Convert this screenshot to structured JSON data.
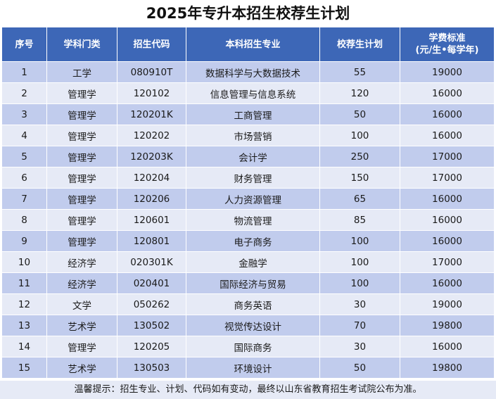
{
  "title": "2025年专升本招生校荐生计划",
  "table": {
    "headers": {
      "seq": "序号",
      "category": "学科门类",
      "code": "招生代码",
      "major": "本科招生专业",
      "plan": "校荐生计划",
      "fee_line1": "学费标准",
      "fee_line2": "(元/生•每学年)"
    },
    "rows": [
      {
        "seq": "1",
        "category": "工学",
        "code": "080910T",
        "major": "数据科学与大数据技术",
        "plan": "55",
        "fee": "19000"
      },
      {
        "seq": "2",
        "category": "管理学",
        "code": "120102",
        "major": "信息管理与信息系统",
        "plan": "120",
        "fee": "16000"
      },
      {
        "seq": "3",
        "category": "管理学",
        "code": "120201K",
        "major": "工商管理",
        "plan": "50",
        "fee": "16000"
      },
      {
        "seq": "4",
        "category": "管理学",
        "code": "120202",
        "major": "市场营销",
        "plan": "100",
        "fee": "16000"
      },
      {
        "seq": "5",
        "category": "管理学",
        "code": "120203K",
        "major": "会计学",
        "plan": "250",
        "fee": "17000"
      },
      {
        "seq": "6",
        "category": "管理学",
        "code": "120204",
        "major": "财务管理",
        "plan": "150",
        "fee": "17000"
      },
      {
        "seq": "7",
        "category": "管理学",
        "code": "120206",
        "major": "人力资源管理",
        "plan": "65",
        "fee": "16000"
      },
      {
        "seq": "8",
        "category": "管理学",
        "code": "120601",
        "major": "物流管理",
        "plan": "85",
        "fee": "16000"
      },
      {
        "seq": "9",
        "category": "管理学",
        "code": "120801",
        "major": "电子商务",
        "plan": "100",
        "fee": "16000"
      },
      {
        "seq": "10",
        "category": "经济学",
        "code": "020301K",
        "major": "金融学",
        "plan": "100",
        "fee": "17000"
      },
      {
        "seq": "11",
        "category": "经济学",
        "code": "020401",
        "major": "国际经济与贸易",
        "plan": "100",
        "fee": "16000"
      },
      {
        "seq": "12",
        "category": "文学",
        "code": "050262",
        "major": "商务英语",
        "plan": "30",
        "fee": "19000"
      },
      {
        "seq": "13",
        "category": "艺术学",
        "code": "130502",
        "major": "视觉传达设计",
        "plan": "70",
        "fee": "19800"
      },
      {
        "seq": "14",
        "category": "管理学",
        "code": "120205",
        "major": "国际商务",
        "plan": "30",
        "fee": "16000"
      },
      {
        "seq": "15",
        "category": "艺术学",
        "code": "130503",
        "major": "环境设计",
        "plan": "50",
        "fee": "19800"
      }
    ]
  },
  "footer_note": "温馨提示：招生专业、计划、代码如有变动，最终以山东省教育招生考试院公布为准。",
  "colors": {
    "header_bg": "#3d67b7",
    "row_odd_bg": "#c1cced",
    "row_even_bg": "#e6eaf6"
  }
}
